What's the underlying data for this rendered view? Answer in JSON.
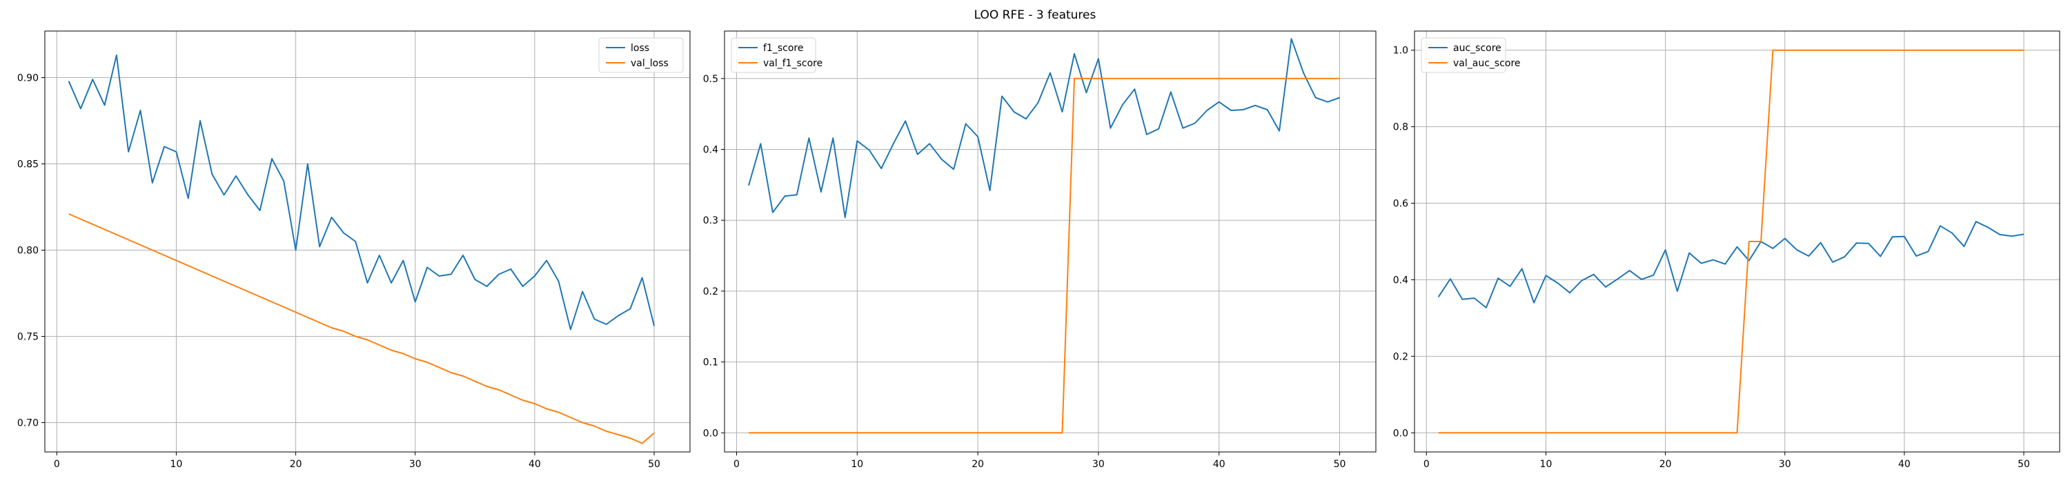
{
  "figure": {
    "title": "LOO RFE - 3 features"
  },
  "chart_data": [
    {
      "type": "line",
      "x": [
        1,
        2,
        3,
        4,
        5,
        6,
        7,
        8,
        9,
        10,
        11,
        12,
        13,
        14,
        15,
        16,
        17,
        18,
        19,
        20,
        21,
        22,
        23,
        24,
        25,
        26,
        27,
        28,
        29,
        30,
        31,
        32,
        33,
        34,
        35,
        36,
        37,
        38,
        39,
        40,
        41,
        42,
        43,
        44,
        45,
        46,
        47,
        48,
        49,
        50
      ],
      "xlim": [
        -1,
        53
      ],
      "ylim": [
        0.683,
        0.927
      ],
      "xticks": [
        0,
        10,
        20,
        30,
        40,
        50
      ],
      "xtick_labels": [
        "0",
        "10",
        "20",
        "30",
        "40",
        "50"
      ],
      "yticks": [
        0.7,
        0.75,
        0.8,
        0.85,
        0.9
      ],
      "ytick_labels": [
        "0.70",
        "0.75",
        "0.80",
        "0.85",
        "0.90"
      ],
      "grid": true,
      "legend": "upper right",
      "series": [
        {
          "name": "loss",
          "color": "#1f77b4",
          "values": [
            0.898,
            0.882,
            0.899,
            0.884,
            0.913,
            0.857,
            0.881,
            0.839,
            0.86,
            0.857,
            0.83,
            0.875,
            0.844,
            0.832,
            0.843,
            0.832,
            0.823,
            0.853,
            0.84,
            0.8,
            0.85,
            0.802,
            0.819,
            0.81,
            0.805,
            0.781,
            0.797,
            0.781,
            0.794,
            0.77,
            0.79,
            0.785,
            0.786,
            0.797,
            0.783,
            0.779,
            0.786,
            0.789,
            0.779,
            0.785,
            0.794,
            0.782,
            0.754,
            0.776,
            0.76,
            0.757,
            0.762,
            0.766,
            0.784,
            0.756
          ]
        },
        {
          "name": "val_loss",
          "color": "#ff7f0e",
          "values": [
            0.821,
            0.818,
            0.815,
            0.812,
            0.809,
            0.806,
            0.803,
            0.8,
            0.797,
            0.794,
            0.791,
            0.788,
            0.785,
            0.782,
            0.779,
            0.776,
            0.773,
            0.77,
            0.767,
            0.764,
            0.761,
            0.758,
            0.755,
            0.753,
            0.75,
            0.748,
            0.745,
            0.742,
            0.74,
            0.737,
            0.735,
            0.732,
            0.729,
            0.727,
            0.724,
            0.721,
            0.719,
            0.716,
            0.713,
            0.711,
            0.708,
            0.706,
            0.703,
            0.7,
            0.698,
            0.695,
            0.693,
            0.691,
            0.688,
            0.694
          ]
        }
      ]
    },
    {
      "type": "line",
      "x": [
        1,
        2,
        3,
        4,
        5,
        6,
        7,
        8,
        9,
        10,
        11,
        12,
        13,
        14,
        15,
        16,
        17,
        18,
        19,
        20,
        21,
        22,
        23,
        24,
        25,
        26,
        27,
        28,
        29,
        30,
        31,
        32,
        33,
        34,
        35,
        36,
        37,
        38,
        39,
        40,
        41,
        42,
        43,
        44,
        45,
        46,
        47,
        48,
        49,
        50
      ],
      "xlim": [
        -1,
        53
      ],
      "ylim": [
        -0.027,
        0.567
      ],
      "xticks": [
        0,
        10,
        20,
        30,
        40,
        50
      ],
      "xtick_labels": [
        "0",
        "10",
        "20",
        "30",
        "40",
        "50"
      ],
      "yticks": [
        0.0,
        0.1,
        0.2,
        0.3,
        0.4,
        0.5
      ],
      "ytick_labels": [
        "0.0",
        "0.1",
        "0.2",
        "0.3",
        "0.4",
        "0.5"
      ],
      "grid": true,
      "legend": "upper left",
      "series": [
        {
          "name": "f1_score",
          "color": "#1f77b4",
          "values": [
            0.349,
            0.408,
            0.311,
            0.334,
            0.336,
            0.416,
            0.34,
            0.416,
            0.304,
            0.412,
            0.399,
            0.373,
            0.408,
            0.44,
            0.393,
            0.408,
            0.386,
            0.372,
            0.436,
            0.418,
            0.342,
            0.475,
            0.453,
            0.443,
            0.466,
            0.508,
            0.453,
            0.535,
            0.48,
            0.528,
            0.43,
            0.463,
            0.485,
            0.421,
            0.429,
            0.481,
            0.43,
            0.437,
            0.455,
            0.467,
            0.455,
            0.456,
            0.462,
            0.456,
            0.426,
            0.556,
            0.508,
            0.473,
            0.467,
            0.473
          ]
        },
        {
          "name": "val_f1_score",
          "color": "#ff7f0e",
          "values": [
            0,
            0,
            0,
            0,
            0,
            0,
            0,
            0,
            0,
            0,
            0,
            0,
            0,
            0,
            0,
            0,
            0,
            0,
            0,
            0,
            0,
            0,
            0,
            0,
            0,
            0,
            0,
            0.5,
            0.5,
            0.5,
            0.5,
            0.5,
            0.5,
            0.5,
            0.5,
            0.5,
            0.5,
            0.5,
            0.5,
            0.5,
            0.5,
            0.5,
            0.5,
            0.5,
            0.5,
            0.5,
            0.5,
            0.5,
            0.5,
            0.5
          ]
        }
      ]
    },
    {
      "type": "line",
      "x": [
        1,
        2,
        3,
        4,
        5,
        6,
        7,
        8,
        9,
        10,
        11,
        12,
        13,
        14,
        15,
        16,
        17,
        18,
        19,
        20,
        21,
        22,
        23,
        24,
        25,
        26,
        27,
        28,
        29,
        30,
        31,
        32,
        33,
        34,
        35,
        36,
        37,
        38,
        39,
        40,
        41,
        42,
        43,
        44,
        45,
        46,
        47,
        48,
        49,
        50
      ],
      "xlim": [
        -1,
        53
      ],
      "ylim": [
        -0.05,
        1.05
      ],
      "xticks": [
        0,
        10,
        20,
        30,
        40,
        50
      ],
      "xtick_labels": [
        "0",
        "10",
        "20",
        "30",
        "40",
        "50"
      ],
      "yticks": [
        0.0,
        0.2,
        0.4,
        0.6,
        0.8,
        1.0
      ],
      "ytick_labels": [
        "0.0",
        "0.2",
        "0.4",
        "0.6",
        "0.8",
        "1.0"
      ],
      "grid": true,
      "legend": "upper left",
      "series": [
        {
          "name": "auc_score",
          "color": "#1f77b4",
          "values": [
            0.355,
            0.402,
            0.349,
            0.352,
            0.327,
            0.404,
            0.383,
            0.429,
            0.34,
            0.411,
            0.391,
            0.366,
            0.398,
            0.414,
            0.381,
            0.402,
            0.424,
            0.401,
            0.412,
            0.478,
            0.37,
            0.47,
            0.443,
            0.452,
            0.441,
            0.486,
            0.45,
            0.5,
            0.482,
            0.508,
            0.478,
            0.462,
            0.497,
            0.446,
            0.46,
            0.496,
            0.495,
            0.461,
            0.512,
            0.513,
            0.462,
            0.474,
            0.541,
            0.522,
            0.487,
            0.552,
            0.537,
            0.518,
            0.514,
            0.519
          ]
        },
        {
          "name": "val_auc_score",
          "color": "#ff7f0e",
          "values": [
            0,
            0,
            0,
            0,
            0,
            0,
            0,
            0,
            0,
            0,
            0,
            0,
            0,
            0,
            0,
            0,
            0,
            0,
            0,
            0,
            0,
            0,
            0,
            0,
            0,
            0,
            0.5,
            0.5,
            1,
            1,
            1,
            1,
            1,
            1,
            1,
            1,
            1,
            1,
            1,
            1,
            1,
            1,
            1,
            1,
            1,
            1,
            1,
            1,
            1,
            1
          ]
        }
      ]
    }
  ]
}
